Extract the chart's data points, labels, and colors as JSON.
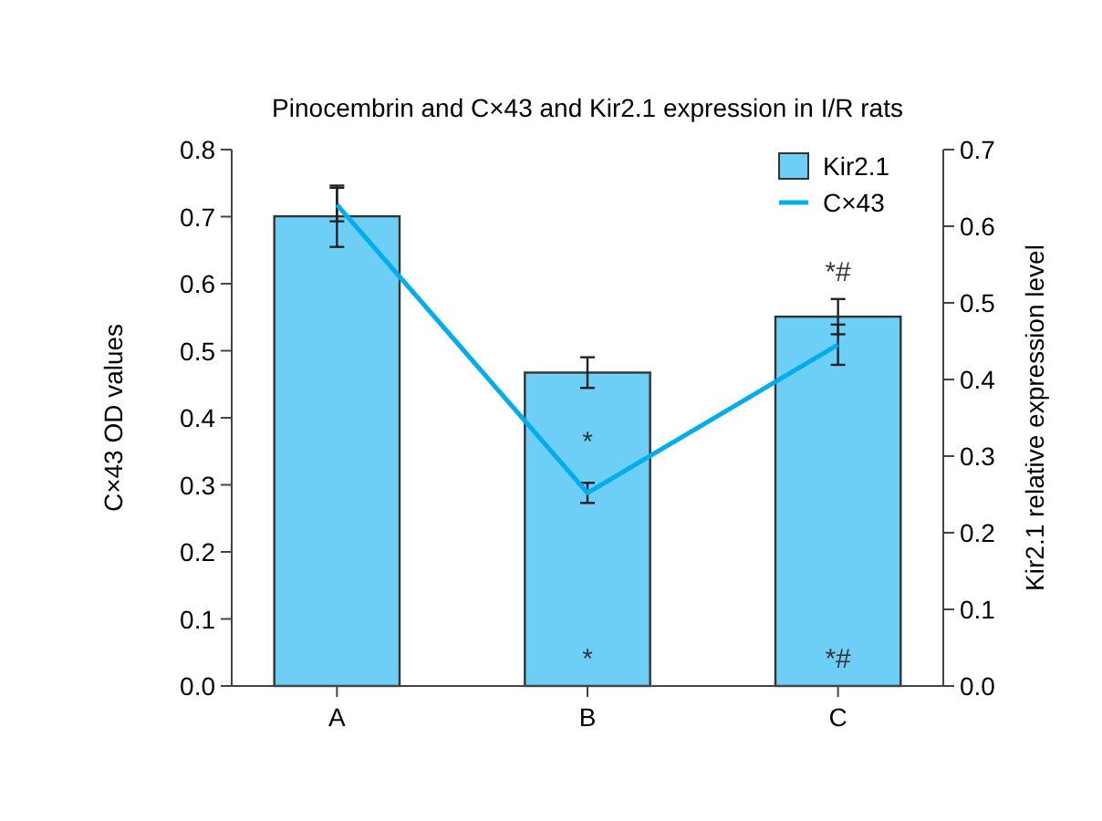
{
  "chart_data": {
    "type": "bar",
    "title": "Pinocembrin and C×43  and Kir2.1 expression in I/R rats",
    "ylabel": "C×43 OD values",
    "y2label": "Kir2.1 relative expression level",
    "categories": [
      "A",
      "B",
      "C"
    ],
    "series": [
      {
        "name": "Kir2.1",
        "axis": "y2",
        "color": "#6dcff6",
        "values": [
          0.613,
          0.409,
          0.482
        ],
        "errors": [
          0.04,
          0.02,
          0.023
        ]
      },
      {
        "type": "line",
        "name": "C×43",
        "color": "#00aeef",
        "values": [
          0.718,
          0.288,
          0.509
        ],
        "errors": [
          0.025,
          0.015,
          0.03
        ]
      }
    ],
    "ylim": [
      0,
      0.8
    ],
    "yticks": [
      {
        "value": 0,
        "label": "0.0"
      },
      0.1,
      0.2,
      0.3,
      0.4,
      0.5,
      0.6,
      0.7,
      0.8
    ],
    "y2lim": [
      0,
      0.7
    ],
    "y2ticks": [
      {
        "value": 0,
        "label": "0.0"
      },
      0.1,
      0.2,
      0.3,
      0.4,
      0.5,
      0.6,
      0.7
    ],
    "annotations": [
      "*",
      "*",
      "*#",
      "*#"
    ],
    "legend": "top right",
    "grid": false
  }
}
